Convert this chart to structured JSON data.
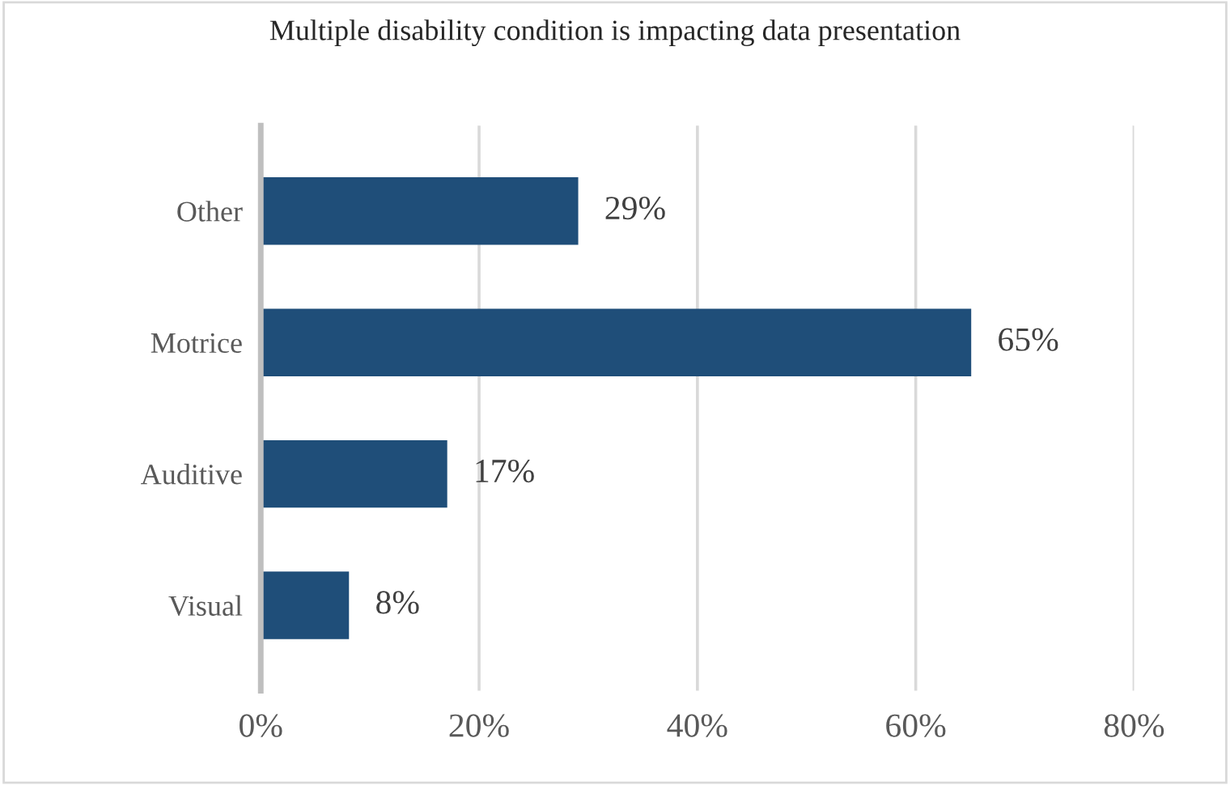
{
  "chart_data": {
    "type": "bar",
    "orientation": "horizontal",
    "title": "Multiple disability condition is impacting data presentation",
    "categories": [
      "Other",
      "Motrice",
      "Auditive",
      "Visual"
    ],
    "values": [
      29,
      65,
      17,
      8
    ],
    "value_labels": [
      "29%",
      "65%",
      "17%",
      "8%"
    ],
    "color": "#1f4e79",
    "xlim": [
      0,
      80
    ],
    "xticks": [
      {
        "value": 0,
        "label": "0%"
      },
      {
        "value": 20,
        "label": "20%"
      },
      {
        "value": 40,
        "label": "40%"
      },
      {
        "value": 60,
        "label": "60%"
      },
      {
        "value": 80,
        "label": "80%"
      }
    ],
    "grid": "x",
    "legend": false
  }
}
